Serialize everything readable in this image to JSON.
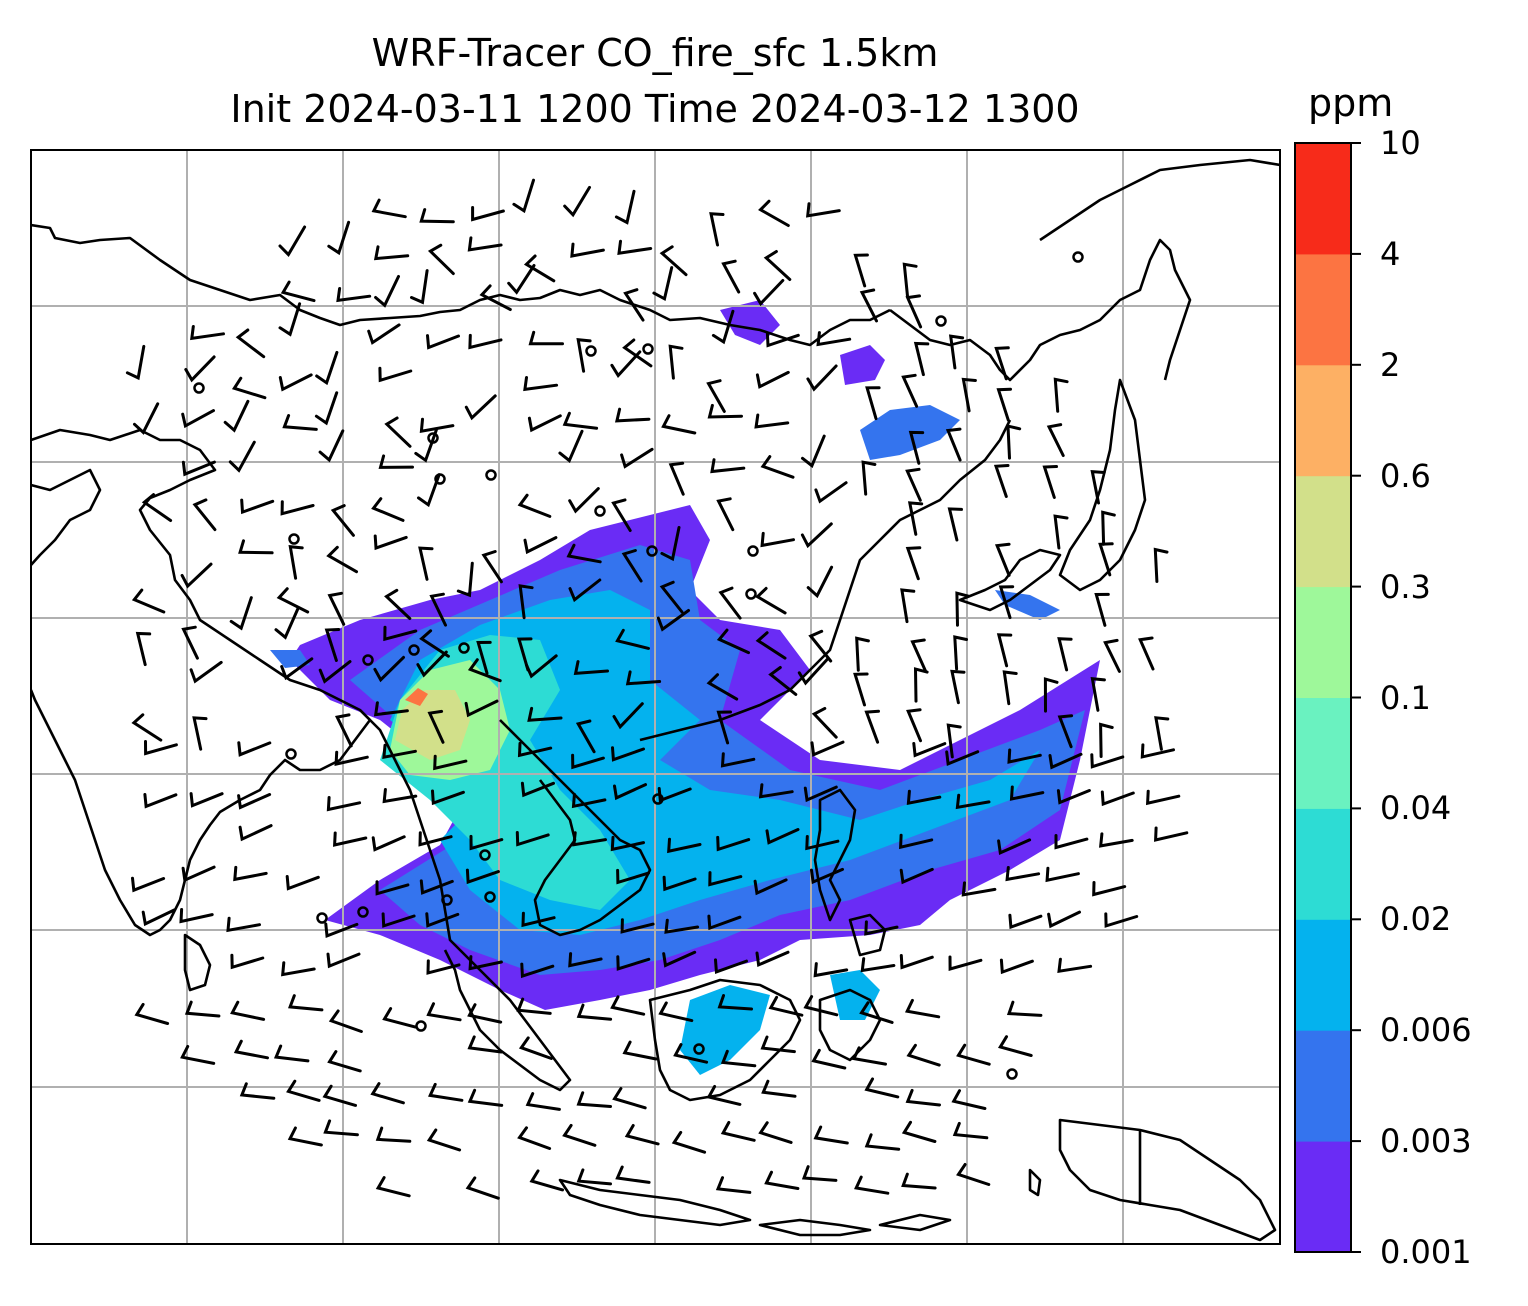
{
  "title": "WRF-Tracer CO_fire_sfc 1.5km",
  "subtitle": "Init 2024-03-11 1200 Time 2024-03-12 1300",
  "colorbar": {
    "unit": "ppm",
    "levels": [
      "0.001",
      "0.003",
      "0.006",
      "0.02",
      "0.04",
      "0.1",
      "0.3",
      "0.6",
      "2",
      "4",
      "10"
    ],
    "colors": [
      "#6a2cf5",
      "#3474ee",
      "#04b2ee",
      "#2ddcd4",
      "#6af2c0",
      "#9ef89a",
      "#d2e08a",
      "#fdb064",
      "#fc7442",
      "#f72b1a"
    ]
  },
  "map": {
    "gridline_color": "#b0b0b0",
    "coastline_color": "#000000",
    "barb_color": "#000000"
  }
}
